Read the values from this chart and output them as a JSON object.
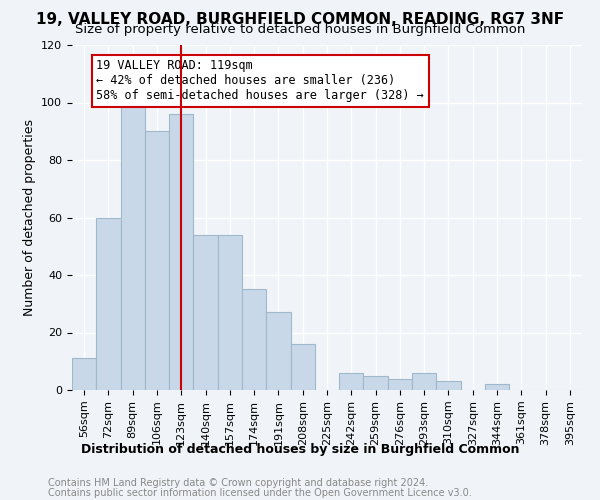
{
  "title": "19, VALLEY ROAD, BURGHFIELD COMMON, READING, RG7 3NF",
  "subtitle": "Size of property relative to detached houses in Burghfield Common",
  "xlabel": "Distribution of detached houses by size in Burghfield Common",
  "ylabel": "Number of detached properties",
  "categories": [
    "56sqm",
    "72sqm",
    "89sqm",
    "106sqm",
    "123sqm",
    "140sqm",
    "157sqm",
    "174sqm",
    "191sqm",
    "208sqm",
    "225sqm",
    "242sqm",
    "259sqm",
    "276sqm",
    "293sqm",
    "310sqm",
    "327sqm",
    "344sqm",
    "361sqm",
    "378sqm",
    "395sqm"
  ],
  "values": [
    11,
    60,
    100,
    90,
    96,
    54,
    54,
    35,
    27,
    16,
    0,
    6,
    5,
    4,
    6,
    3,
    0,
    2,
    0,
    0,
    0
  ],
  "bar_color": "#c8d8e8",
  "bar_edge_color": "#a0b8cc",
  "property_size": 119,
  "property_line_x": 4,
  "annotation_line1": "19 VALLEY ROAD: 119sqm",
  "annotation_line2": "← 42% of detached houses are smaller (236)",
  "annotation_line3": "58% of semi-detached houses are larger (328) →",
  "annotation_box_color": "#ffffff",
  "annotation_box_edge_color": "#cc0000",
  "vline_color": "#cc0000",
  "vline_x": 4.5,
  "ylim": [
    0,
    120
  ],
  "yticks": [
    0,
    20,
    40,
    60,
    80,
    100,
    120
  ],
  "footer_line1": "Contains HM Land Registry data © Crown copyright and database right 2024.",
  "footer_line2": "Contains public sector information licensed under the Open Government Licence v3.0.",
  "background_color": "#f0f4f8",
  "grid_color": "#ffffff",
  "title_fontsize": 11,
  "subtitle_fontsize": 9.5,
  "axis_label_fontsize": 9,
  "tick_fontsize": 8,
  "annotation_fontsize": 8.5,
  "footer_fontsize": 7
}
